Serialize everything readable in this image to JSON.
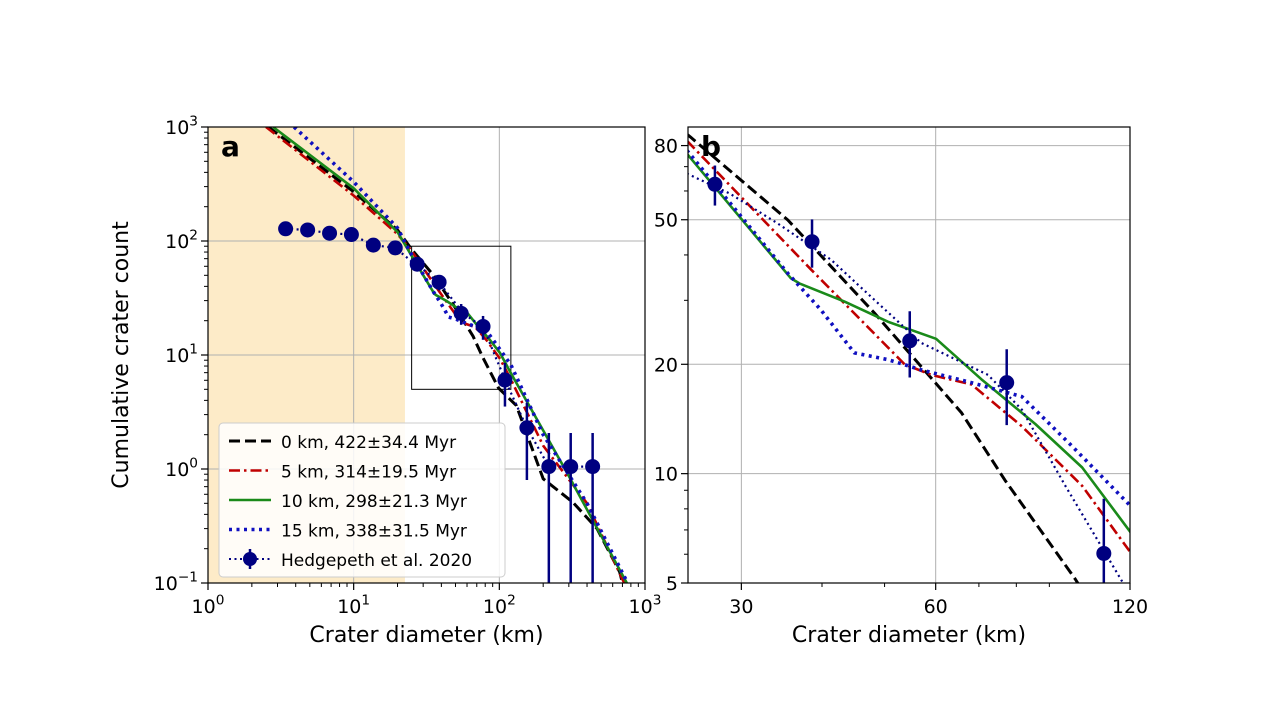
{
  "legend": {
    "entries": [
      {
        "label": "0 km, 422±34.4 Myr",
        "color": "#000000",
        "style": "dashed"
      },
      {
        "label": "5 km, 314±19.5 Myr",
        "color": "#c00000",
        "style": "dashdot"
      },
      {
        "label": "10 km, 298±21.3 Myr",
        "color": "#1a8a1a",
        "style": "solid"
      },
      {
        "label": "15 km, 338±31.5 Myr",
        "color": "#1010c0",
        "style": "dotted"
      },
      {
        "label": "Hedgepeth et al. 2020",
        "color": "#000080",
        "style": "errorbar-dotted"
      }
    ]
  },
  "chart_data": [
    {
      "type": "line",
      "panel_label": "a",
      "xlabel": "Crater diameter (km)",
      "ylabel": "Cumulative crater count",
      "xscale": "log",
      "yscale": "log",
      "xlim": [
        1,
        1000
      ],
      "ylim": [
        0.1,
        1000
      ],
      "xticks": [
        1,
        10,
        100,
        1000
      ],
      "xtick_labels": [
        "10^0",
        "10^1",
        "10^2",
        "10^3"
      ],
      "yticks": [
        0.1,
        1,
        10,
        100,
        1000
      ],
      "ytick_labels": [
        "10^−1",
        "10^0",
        "10^1",
        "10^2",
        "10^3"
      ],
      "grid": true,
      "legend_position": "lower-left",
      "shaded_region": {
        "x": [
          1,
          22.5
        ],
        "color": "#fdebc8"
      },
      "inset_box": {
        "x": [
          25,
          120
        ],
        "y": [
          5,
          90
        ]
      },
      "series": [
        {
          "name": "0 km, 422±34.4 Myr",
          "points": [
            [
              2.6,
              1000
            ],
            [
              10,
              270
            ],
            [
              20,
              125
            ],
            [
              25,
              84.5
            ],
            [
              35.4,
              49.9
            ],
            [
              48.2,
              27.7
            ],
            [
              57,
              19.7
            ],
            [
              65.8,
              14.7
            ],
            [
              76.8,
              9.6
            ],
            [
              98.7,
              5.13
            ],
            [
              131,
              3.6
            ],
            [
              200,
              0.82
            ],
            [
              320,
              0.51
            ],
            [
              468,
              0.3
            ],
            [
              670,
              0.125
            ],
            [
              700,
              0.1
            ]
          ]
        },
        {
          "name": "5 km, 314±19.5 Myr",
          "points": [
            [
              2.5,
              1000
            ],
            [
              10,
              250
            ],
            [
              20,
              115
            ],
            [
              25,
              81.9
            ],
            [
              38.5,
              36.4
            ],
            [
              53.7,
              20
            ],
            [
              59.1,
              18.7
            ],
            [
              68.2,
              17.6
            ],
            [
              81.6,
              13.5
            ],
            [
              101.2,
              9.25
            ],
            [
              120.2,
              6.07
            ],
            [
              200,
              1.6
            ],
            [
              400,
              0.5
            ],
            [
              720,
              0.1
            ]
          ]
        },
        {
          "name": "10 km, 298±21.3 Myr",
          "points": [
            [
              2.8,
              1000
            ],
            [
              10,
              290
            ],
            [
              20,
              120
            ],
            [
              24.7,
              76
            ],
            [
              35.8,
              34.5
            ],
            [
              36.9,
              33.4
            ],
            [
              43.3,
              29.8
            ],
            [
              50.6,
              26.2
            ],
            [
              60.1,
              23.5
            ],
            [
              70.6,
              18.2
            ],
            [
              85.6,
              13.7
            ],
            [
              101.2,
              10.4
            ],
            [
              120.2,
              6.9
            ],
            [
              290,
              0.94
            ],
            [
              750,
              0.1
            ]
          ]
        },
        {
          "name": "15 km, 338±31.5 Myr",
          "points": [
            [
              3.9,
              1000
            ],
            [
              10,
              330
            ],
            [
              20,
              130
            ],
            [
              24.7,
              77.6
            ],
            [
              35.4,
              35.6
            ],
            [
              39.8,
              28.3
            ],
            [
              44.9,
              21.5
            ],
            [
              50.6,
              20.6
            ],
            [
              57,
              19.3
            ],
            [
              68.2,
              17.8
            ],
            [
              81.6,
              16.3
            ],
            [
              97.6,
              11.9
            ],
            [
              120.2,
              8.15
            ],
            [
              200,
              2.0
            ],
            [
              400,
              0.5
            ],
            [
              760,
              0.1
            ]
          ]
        },
        {
          "name": "Hedgepeth et al. 2020",
          "x": [
            3.41,
            4.83,
            6.83,
            9.65,
            13.65,
            19.3,
            27.3,
            38.6,
            54.7,
            77.3,
            109.3,
            154.6,
            218.7,
            309,
            437
          ],
          "y": [
            128,
            125,
            117,
            114,
            92,
            87,
            62.6,
            43.5,
            23.2,
            17.8,
            6.03,
            2.3,
            1.05,
            1.05,
            1.05
          ],
          "yerr": [
            11.3,
            11.2,
            10.8,
            10.7,
            9.6,
            9.3,
            7.9,
            6.6,
            4.8,
            4.2,
            2.5,
            1.5,
            1.02,
            1.02,
            1.02
          ],
          "line": [
            [
              3.41,
              128
            ],
            [
              4.83,
              125
            ],
            [
              6.83,
              117
            ],
            [
              9.65,
              114
            ],
            [
              13.65,
              92
            ],
            [
              19.3,
              87
            ],
            [
              24.7,
              67
            ],
            [
              28.8,
              59
            ],
            [
              34.1,
              48.9
            ],
            [
              41.3,
              38.8
            ],
            [
              48.2,
              30.1
            ],
            [
              57,
              22.9
            ],
            [
              72.3,
              18.7
            ],
            [
              81.6,
              15
            ],
            [
              95.3,
              9.25
            ],
            [
              116.9,
              5.02
            ],
            [
              154.6,
              2.3
            ],
            [
              218.7,
              1.05
            ],
            [
              309,
              1.05
            ],
            [
              437,
              1.05
            ]
          ]
        }
      ]
    },
    {
      "type": "line",
      "panel_label": "b",
      "xlabel": "Crater diameter (km)",
      "ylabel": "",
      "xscale": "log",
      "yscale": "log",
      "xlim": [
        24.8,
        120
      ],
      "ylim": [
        5,
        90
      ],
      "xticks": [
        30,
        60,
        120
      ],
      "xtick_labels": [
        "30",
        "60",
        "120"
      ],
      "yticks": [
        5,
        10,
        20,
        50,
        80
      ],
      "ytick_labels": [
        "5",
        "10",
        "20",
        "50",
        "80"
      ],
      "grid": true,
      "series": [
        {
          "name": "0 km, 422±34.4 Myr",
          "points": [
            [
              24.7,
              86
            ],
            [
              25,
              84.5
            ],
            [
              35.4,
              49.9
            ],
            [
              48.2,
              27.7
            ],
            [
              57,
              19.7
            ],
            [
              65.8,
              14.7
            ],
            [
              76.8,
              9.6
            ],
            [
              98.7,
              5.13
            ],
            [
              101,
              4.8
            ]
          ]
        },
        {
          "name": "5 km, 314±19.5 Myr",
          "points": [
            [
              24.7,
              82.5
            ],
            [
              38.5,
              36.4
            ],
            [
              53.7,
              20
            ],
            [
              59.1,
              18.7
            ],
            [
              68.2,
              17.6
            ],
            [
              81.6,
              13.5
            ],
            [
              101.2,
              9.25
            ],
            [
              120.2,
              6.07
            ]
          ]
        },
        {
          "name": "10 km, 298±21.3 Myr",
          "points": [
            [
              24.7,
              76
            ],
            [
              35.8,
              34.5
            ],
            [
              36.9,
              33.4
            ],
            [
              43.3,
              29.8
            ],
            [
              50.6,
              26.2
            ],
            [
              60.1,
              23.5
            ],
            [
              70.6,
              18.2
            ],
            [
              85.6,
              13.7
            ],
            [
              101.2,
              10.4
            ],
            [
              120.2,
              6.9
            ]
          ]
        },
        {
          "name": "15 km, 338±31.5 Myr",
          "points": [
            [
              24.7,
              77.6
            ],
            [
              35.4,
              35.6
            ],
            [
              39.8,
              28.3
            ],
            [
              44.9,
              21.5
            ],
            [
              50.6,
              20.6
            ],
            [
              57,
              19.3
            ],
            [
              68.2,
              17.8
            ],
            [
              81.6,
              16.3
            ],
            [
              97.6,
              11.9
            ],
            [
              120.2,
              8.15
            ]
          ]
        },
        {
          "name": "Hedgepeth et al. 2020",
          "x": [
            27.3,
            38.6,
            54.7,
            77.3,
            109.3
          ],
          "y": [
            62.6,
            43.5,
            23.2,
            17.8,
            6.03
          ],
          "yerr": [
            7.9,
            6.6,
            4.8,
            4.2,
            2.5
          ],
          "line": [
            [
              24.7,
              67
            ],
            [
              28.8,
              59
            ],
            [
              34.1,
              48.9
            ],
            [
              41.3,
              38.8
            ],
            [
              48.2,
              30.1
            ],
            [
              57,
              22.9
            ],
            [
              72.3,
              18.7
            ],
            [
              81.6,
              15
            ],
            [
              95.3,
              9.25
            ],
            [
              116.9,
              5.02
            ],
            [
              120,
              4.7
            ]
          ]
        }
      ]
    }
  ]
}
